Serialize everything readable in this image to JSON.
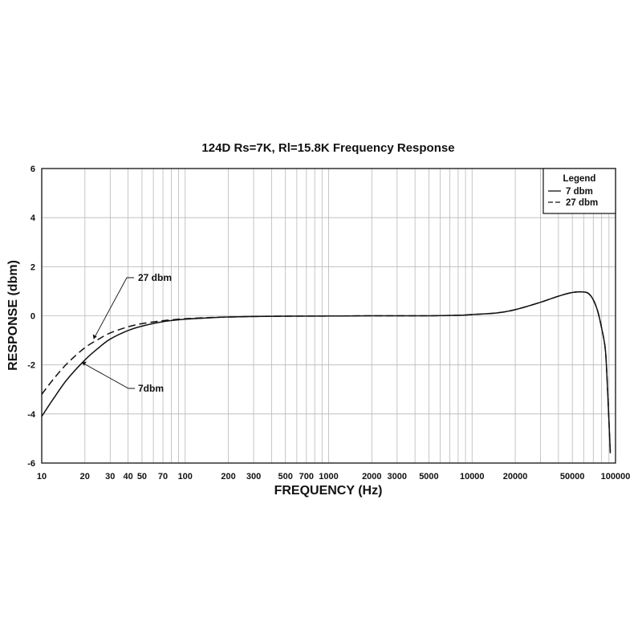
{
  "chart_data": {
    "type": "line",
    "title": "124D Rs=7K, Rl=15.8K  Frequency Response",
    "xlabel": "FREQUENCY (Hz)",
    "ylabel": "RESPONSE (dbm)",
    "x_scale": "log",
    "xlim": [
      10,
      100000
    ],
    "ylim": [
      -6,
      6
    ],
    "grid": true,
    "y_ticks": [
      6,
      4,
      2,
      0,
      -2,
      -4,
      -6
    ],
    "x_ticks": [
      {
        "value": 10,
        "label": "10"
      },
      {
        "value": 20,
        "label": "20"
      },
      {
        "value": 30,
        "label": "30"
      },
      {
        "value": 40,
        "label": "40"
      },
      {
        "value": 50,
        "label": "50"
      },
      {
        "value": 70,
        "label": "70"
      },
      {
        "value": 100,
        "label": "100"
      },
      {
        "value": 200,
        "label": "200"
      },
      {
        "value": 300,
        "label": "300"
      },
      {
        "value": 500,
        "label": "500"
      },
      {
        "value": 700,
        "label": "700"
      },
      {
        "value": 1000,
        "label": "1000"
      },
      {
        "value": 2000,
        "label": "2000"
      },
      {
        "value": 3000,
        "label": "3000"
      },
      {
        "value": 5000,
        "label": "5000"
      },
      {
        "value": 10000,
        "label": "10000"
      },
      {
        "value": 20000,
        "label": "20000"
      },
      {
        "value": 50000,
        "label": "50000"
      },
      {
        "value": 100000,
        "label": "100000"
      }
    ],
    "legend": {
      "title": "Legend",
      "position": "top-right",
      "entries": [
        "7 dbm",
        "27 dbm"
      ]
    },
    "series": [
      {
        "name": "7 dbm",
        "style": "solid",
        "points": [
          [
            10,
            -4.1
          ],
          [
            12,
            -3.4
          ],
          [
            15,
            -2.6
          ],
          [
            20,
            -1.8
          ],
          [
            25,
            -1.3
          ],
          [
            30,
            -0.95
          ],
          [
            40,
            -0.6
          ],
          [
            50,
            -0.42
          ],
          [
            70,
            -0.24
          ],
          [
            100,
            -0.14
          ],
          [
            150,
            -0.08
          ],
          [
            200,
            -0.05
          ],
          [
            300,
            -0.03
          ],
          [
            500,
            -0.015
          ],
          [
            1000,
            -0.01
          ],
          [
            2000,
            0.0
          ],
          [
            5000,
            0.0
          ],
          [
            8000,
            0.02
          ],
          [
            10000,
            0.05
          ],
          [
            15000,
            0.12
          ],
          [
            20000,
            0.25
          ],
          [
            30000,
            0.55
          ],
          [
            40000,
            0.8
          ],
          [
            50000,
            0.95
          ],
          [
            60000,
            0.97
          ],
          [
            65000,
            0.9
          ],
          [
            70000,
            0.65
          ],
          [
            75000,
            0.2
          ],
          [
            80000,
            -0.5
          ],
          [
            85000,
            -1.4
          ],
          [
            88000,
            -3.0
          ],
          [
            92000,
            -5.6
          ]
        ]
      },
      {
        "name": "27 dbm",
        "style": "dashed",
        "points": [
          [
            10,
            -3.2
          ],
          [
            12,
            -2.6
          ],
          [
            15,
            -1.95
          ],
          [
            20,
            -1.3
          ],
          [
            25,
            -0.95
          ],
          [
            30,
            -0.7
          ],
          [
            40,
            -0.45
          ],
          [
            50,
            -0.32
          ],
          [
            70,
            -0.2
          ],
          [
            100,
            -0.12
          ],
          [
            150,
            -0.07
          ],
          [
            200,
            -0.05
          ],
          [
            300,
            -0.03
          ],
          [
            500,
            -0.015
          ],
          [
            1000,
            -0.01
          ],
          [
            2000,
            0.0
          ],
          [
            5000,
            0.0
          ],
          [
            8000,
            0.02
          ],
          [
            10000,
            0.05
          ],
          [
            15000,
            0.12
          ],
          [
            20000,
            0.25
          ],
          [
            30000,
            0.55
          ],
          [
            40000,
            0.8
          ],
          [
            50000,
            0.95
          ],
          [
            60000,
            0.97
          ],
          [
            65000,
            0.9
          ],
          [
            70000,
            0.65
          ],
          [
            75000,
            0.2
          ],
          [
            80000,
            -0.5
          ],
          [
            85000,
            -1.4
          ],
          [
            88000,
            -3.0
          ],
          [
            92000,
            -5.6
          ]
        ]
      }
    ],
    "annotations": [
      {
        "text": "27 dbm",
        "series": "27 dbm",
        "x": 23,
        "y": -0.95
      },
      {
        "text": "7dbm",
        "series": "7 dbm",
        "x": 19,
        "y": -1.9
      }
    ]
  }
}
